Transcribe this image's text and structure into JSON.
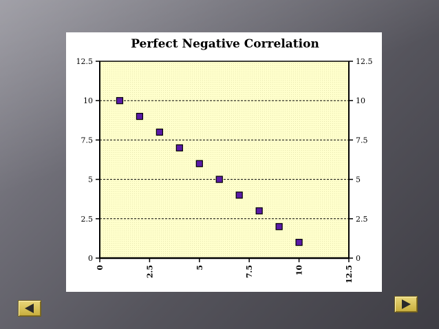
{
  "chart_data": {
    "type": "scatter",
    "title": "Perfect Negative Correlation",
    "xlabel": "",
    "ylabel": "",
    "x": [
      1,
      2,
      3,
      4,
      5,
      6,
      7,
      8,
      9,
      10
    ],
    "y": [
      10,
      9,
      8,
      7,
      6,
      5,
      4,
      3,
      2,
      1
    ],
    "xlim": [
      0,
      12.5
    ],
    "ylim": [
      0,
      12.5
    ],
    "x_ticks": [
      "0",
      "2.5",
      "5",
      "7.5",
      "10",
      "12.5"
    ],
    "y_ticks": [
      "0",
      "2.5",
      "5",
      "7.5",
      "10",
      "12.5"
    ],
    "grid": "horizontal dashed",
    "legend": "none",
    "colors": {
      "plot_background": "#ffffcc",
      "marker_fill": "#5a1aa8",
      "marker_stroke": "#000000"
    }
  },
  "navigation": {
    "prev_icon": "left-arrow-icon",
    "next_icon": "right-arrow-icon"
  }
}
